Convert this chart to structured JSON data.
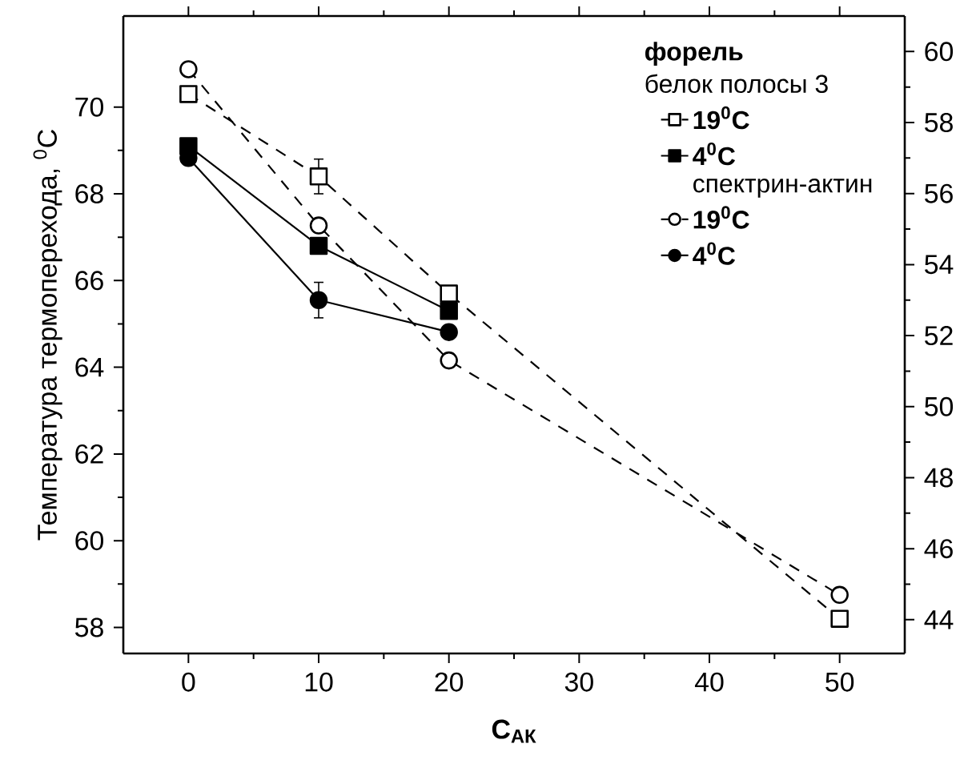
{
  "chart_data": {
    "type": "line",
    "xlabel": "C$_{АК}$",
    "ylabel": "Температура термоперехода, $^{0}$C",
    "legend_title": "форель",
    "annotations": [
      "белок полосы 3",
      "спектрин-актин"
    ],
    "xlim": [
      -5,
      55
    ],
    "xticks": [
      0,
      10,
      20,
      30,
      40,
      50
    ],
    "ylim": [
      57.4,
      72.1
    ],
    "yticks": [
      58,
      60,
      62,
      64,
      66,
      68,
      70
    ],
    "y2lim": [
      43.05,
      61.0
    ],
    "y2ticks": [
      44,
      46,
      48,
      50,
      52,
      54,
      56,
      58,
      60
    ],
    "legend": "top right",
    "series": [
      {
        "name": "19$^{0}$C",
        "color": "#000000",
        "marker": "square",
        "line_style": "dashed",
        "x": [
          0,
          10,
          20,
          50
        ],
        "values": [
          70.3,
          68.4,
          65.7,
          58.2
        ],
        "errors": [
          null,
          0.4,
          null,
          null
        ]
      },
      {
        "name": "4$^{0}$C",
        "color": "#000000",
        "marker": "square",
        "line_style": "solid",
        "x": [
          0,
          10,
          20
        ],
        "values": [
          69.1,
          66.8,
          65.3
        ]
      },
      {
        "name": "19$^{0}$C",
        "color": "#000000",
        "marker": "circle",
        "line_style": "dashed",
        "axis": "y2",
        "x": [
          0,
          10,
          20,
          50
        ],
        "values": [
          59.5,
          55.1,
          51.3,
          44.7
        ]
      },
      {
        "name": "4$^{0}$C",
        "color": "#000000",
        "marker": "circle",
        "line_style": "solid",
        "axis": "y2",
        "x": [
          0,
          10,
          20
        ],
        "values": [
          57.0,
          53.0,
          52.1
        ],
        "errors": [
          null,
          0.5,
          null
        ]
      }
    ]
  }
}
